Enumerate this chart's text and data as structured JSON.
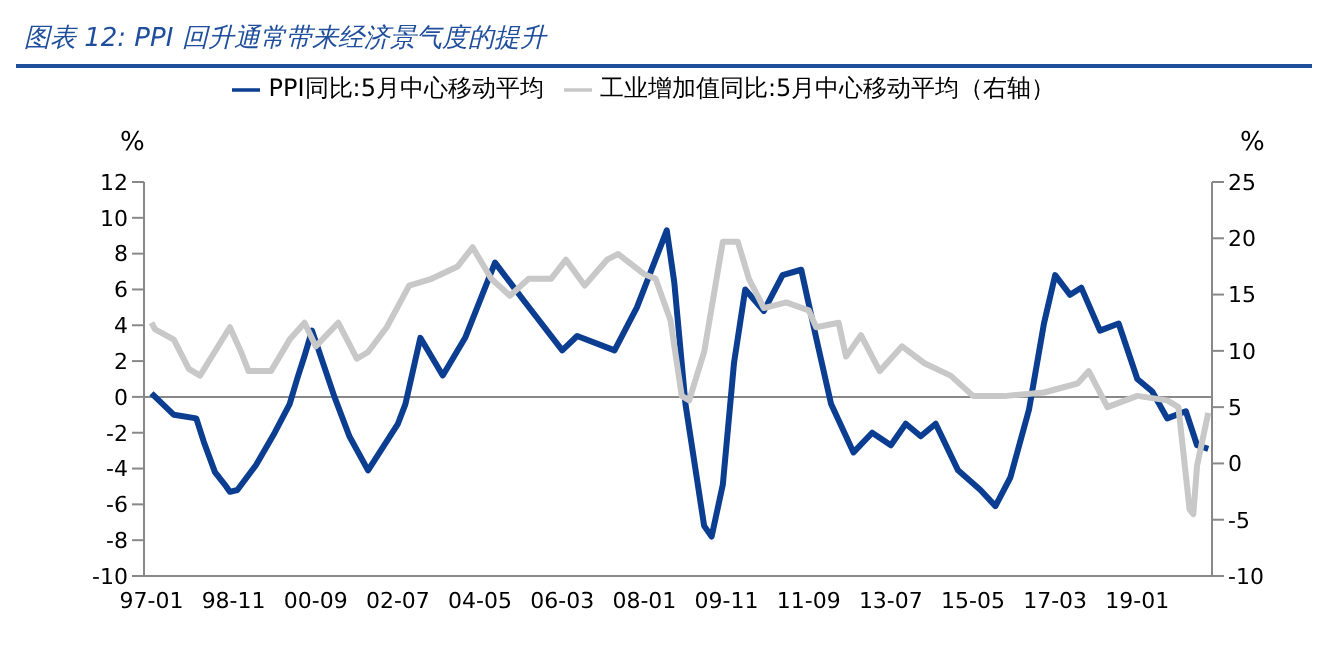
{
  "chart_data": {
    "type": "line",
    "title": "图表 12:  PPI 回升通常带来经济景气度的提升",
    "ylabel": "%",
    "y2label": "%",
    "xlim": [
      "1996-11",
      "2020-09"
    ],
    "xticks": [
      {
        "value": "1997-01",
        "label": "97-01"
      },
      {
        "value": "1998-11",
        "label": "98-11"
      },
      {
        "value": "2000-09",
        "label": "00-09"
      },
      {
        "value": "2002-07",
        "label": "02-07"
      },
      {
        "value": "2004-05",
        "label": "04-05"
      },
      {
        "value": "2006-03",
        "label": "06-03"
      },
      {
        "value": "2008-01",
        "label": "08-01"
      },
      {
        "value": "2009-11",
        "label": "09-11"
      },
      {
        "value": "2011-09",
        "label": "11-09"
      },
      {
        "value": "2013-07",
        "label": "13-07"
      },
      {
        "value": "2015-05",
        "label": "15-05"
      },
      {
        "value": "2017-03",
        "label": "17-03"
      },
      {
        "value": "2019-01",
        "label": "19-01"
      }
    ],
    "ylim": [
      -10,
      12
    ],
    "yticks": [
      -10,
      -8,
      -6,
      -4,
      -2,
      0,
      2,
      4,
      6,
      8,
      10,
      12
    ],
    "y2lim": [
      -10,
      25
    ],
    "y2ticks": [
      -10,
      -5,
      0,
      5,
      10,
      15,
      20,
      25
    ],
    "legend": "top",
    "ref_lines": [
      {
        "axis": "y",
        "value": 0,
        "color": "#888888"
      }
    ],
    "marker": "none",
    "line_style": "solid",
    "series": [
      {
        "name": "PPI同比:5月中心移动平均",
        "color": "#0b3d91",
        "x": [
          "1997-01",
          "1997-02",
          "1997-07",
          "1998-01",
          "1998-03",
          "1998-06",
          "1998-09",
          "1998-10",
          "1998-12",
          "1999-05",
          "1999-10",
          "2000-02",
          "2000-04",
          "2000-06",
          "2000-08",
          "2001-02",
          "2001-06",
          "2001-11",
          "2002-03",
          "2002-07",
          "2002-09",
          "2003-01",
          "2003-07",
          "2004-01",
          "2004-09",
          "2005-05",
          "2006-03",
          "2006-07",
          "2007-05",
          "2007-11",
          "2008-07",
          "2008-09",
          "2008-12",
          "2009-05",
          "2009-07",
          "2009-10",
          "2010-01",
          "2010-04",
          "2010-09",
          "2011-02",
          "2011-07",
          "2011-11",
          "2012-03",
          "2012-09",
          "2013-02",
          "2013-07",
          "2013-11",
          "2014-03",
          "2014-07",
          "2015-01",
          "2015-07",
          "2015-11",
          "2016-03",
          "2016-08",
          "2016-12",
          "2017-03",
          "2017-07",
          "2017-10",
          "2018-03",
          "2018-08",
          "2019-01",
          "2019-05",
          "2019-09",
          "2020-02",
          "2020-05",
          "2020-08"
        ],
        "values": [
          0.2,
          0,
          -1,
          -1.2,
          -2.5,
          -4.2,
          -5,
          -5.3,
          -5.2,
          -3.8,
          -2,
          -0.4,
          1,
          2.3,
          3.7,
          0,
          -2.2,
          -4.1,
          -2.8,
          -1.5,
          -0.4,
          3.3,
          1.2,
          3.3,
          7.5,
          5.3,
          2.6,
          3.4,
          2.6,
          5,
          9.3,
          6.4,
          -0.4,
          -7.2,
          -7.8,
          -4.9,
          1.9,
          6,
          4.8,
          6.8,
          7.1,
          3.3,
          -0.4,
          -3.1,
          -2,
          -2.7,
          -1.5,
          -2.2,
          -1.5,
          -4.1,
          -5.2,
          -6.1,
          -4.5,
          -0.7,
          4.1,
          6.8,
          5.7,
          6.1,
          3.7,
          4.1,
          1,
          0.3,
          -1.2,
          -0.8,
          -2.7,
          -2.9
        ]
      },
      {
        "name": "工业增加值同比:5月中心移动平均（右轴）",
        "color": "#c8c8c8",
        "axis": "y2",
        "x": [
          "1997-01",
          "1997-02",
          "1997-07",
          "1997-11",
          "1998-02",
          "1998-10",
          "1999-01",
          "1999-03",
          "1999-09",
          "2000-02",
          "2000-06",
          "2000-09",
          "2001-03",
          "2001-08",
          "2001-11",
          "2002-04",
          "2002-10",
          "2003-04",
          "2003-11",
          "2004-03",
          "2004-08",
          "2005-01",
          "2005-06",
          "2005-12",
          "2006-04",
          "2006-09",
          "2007-03",
          "2007-06",
          "2008-01",
          "2008-04",
          "2008-08",
          "2008-11",
          "2009-01",
          "2009-05",
          "2009-10",
          "2010-02",
          "2010-05",
          "2010-09",
          "2011-03",
          "2011-09",
          "2011-11",
          "2012-05",
          "2012-07",
          "2012-11",
          "2013-04",
          "2013-10",
          "2014-04",
          "2014-11",
          "2015-05",
          "2016-02",
          "2016-12",
          "2017-09",
          "2017-12",
          "2018-05",
          "2019-01",
          "2019-09",
          "2019-12",
          "2020-03",
          "2020-04",
          "2020-05",
          "2020-08"
        ],
        "values": [
          12.5,
          11.9,
          11,
          8.4,
          7.8,
          12.1,
          9.9,
          8.2,
          8.2,
          11,
          12.5,
          10.4,
          12.5,
          9.3,
          9.9,
          12.1,
          15.8,
          16.4,
          17.5,
          19.2,
          16.4,
          14.9,
          16.4,
          16.4,
          18.1,
          15.8,
          18.1,
          18.6,
          16.8,
          16.4,
          12.7,
          6,
          5.6,
          9.9,
          19.7,
          19.7,
          16.4,
          13.8,
          14.3,
          13.6,
          12.1,
          12.5,
          9.5,
          11.4,
          8.2,
          10.4,
          8.9,
          7.8,
          6,
          6,
          6.3,
          7.1,
          8.2,
          5,
          6,
          5.6,
          5,
          -4.1,
          -4.5,
          -0.2,
          4.5
        ]
      }
    ]
  }
}
